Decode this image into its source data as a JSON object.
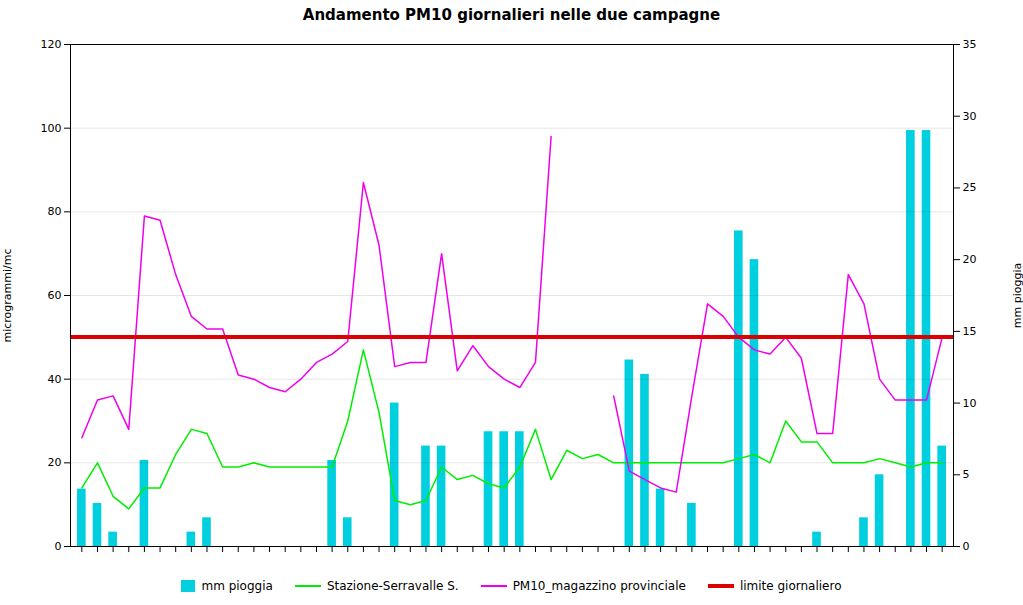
{
  "chart_data": {
    "type": "bar",
    "title": "Andamento PM10 giornalieri nelle due campagne",
    "ylabel": "microgrammi/mc",
    "y2label": "mm pioggia",
    "categories": [
      null,
      null,
      null,
      null,
      null,
      null,
      null,
      null,
      null,
      null,
      null,
      null,
      null,
      null,
      null,
      null,
      null,
      null,
      null,
      null,
      null,
      null,
      null,
      null,
      null,
      null,
      null,
      null,
      null,
      null,
      null,
      null,
      null,
      null,
      null,
      null,
      null,
      null,
      null,
      null,
      null,
      null,
      null,
      null,
      null,
      null,
      null,
      null,
      null,
      null,
      null,
      null,
      null,
      null,
      null,
      null
    ],
    "series": [
      {
        "name": "mm pioggia",
        "type": "bar",
        "axis": "y2",
        "color": "#00CFDF",
        "values": [
          4,
          3,
          1,
          0,
          6,
          0,
          0,
          1,
          2,
          0,
          0,
          0,
          0,
          0,
          0,
          0,
          6,
          2,
          0,
          0,
          10,
          0,
          7,
          7,
          0,
          0,
          8,
          8,
          8,
          0,
          0,
          0,
          0,
          0,
          0,
          13,
          12,
          4,
          0,
          3,
          0,
          0,
          22,
          20,
          0,
          0,
          0,
          1,
          0,
          0,
          2,
          5,
          0,
          29,
          29,
          7
        ]
      },
      {
        "name": "Stazione-Serravalle S.",
        "type": "line",
        "color": "#00EE00",
        "values": [
          14,
          20,
          12,
          9,
          14,
          14,
          22,
          28,
          27,
          19,
          19,
          20,
          19,
          19,
          19,
          19,
          19,
          30,
          47,
          32,
          11,
          10,
          11,
          19,
          16,
          17,
          15,
          14,
          19,
          28,
          16,
          23,
          21,
          22,
          20,
          20,
          20,
          20,
          20,
          20,
          20,
          20,
          21,
          22,
          20,
          30,
          25,
          25,
          20,
          20,
          20,
          21,
          20,
          19,
          20,
          20
        ]
      },
      {
        "name": "PM10_magazzino provinciale",
        "type": "line",
        "color": "#EE00EE",
        "values": [
          26,
          35,
          36,
          28,
          79,
          78,
          65,
          55,
          52,
          52,
          41,
          40,
          38,
          37,
          40,
          44,
          46,
          49,
          87,
          72,
          43,
          44,
          44,
          70,
          42,
          48,
          43,
          40,
          38,
          44,
          98,
          null,
          null,
          null,
          36,
          18,
          16,
          14,
          13,
          36,
          58,
          55,
          50,
          47,
          46,
          50,
          45,
          27,
          27,
          65,
          58,
          40,
          35,
          35,
          35,
          50
        ]
      },
      {
        "name": "limite giornaliero",
        "type": "hline",
        "color": "#DD0000",
        "values": [
          50,
          50,
          50,
          50,
          50,
          50,
          50,
          50,
          50,
          50,
          50,
          50,
          50,
          50,
          50,
          50,
          50,
          50,
          50,
          50,
          50,
          50,
          50,
          50,
          50,
          50,
          50,
          50,
          50,
          50,
          50,
          50,
          50,
          50,
          50,
          50,
          50,
          50,
          50,
          50,
          50,
          50,
          50,
          50,
          50,
          50,
          50,
          50,
          50,
          50,
          50,
          50,
          50,
          50,
          50,
          50
        ]
      }
    ],
    "ylim": [
      0,
      120
    ],
    "yticks": [
      0,
      20,
      40,
      60,
      80,
      100,
      120
    ],
    "y2lim": [
      0,
      35
    ],
    "y2ticks": [
      0,
      5,
      10,
      15,
      20,
      25,
      30,
      35
    ],
    "grid": true,
    "legend": "bottom",
    "tick_labels": "y"
  }
}
